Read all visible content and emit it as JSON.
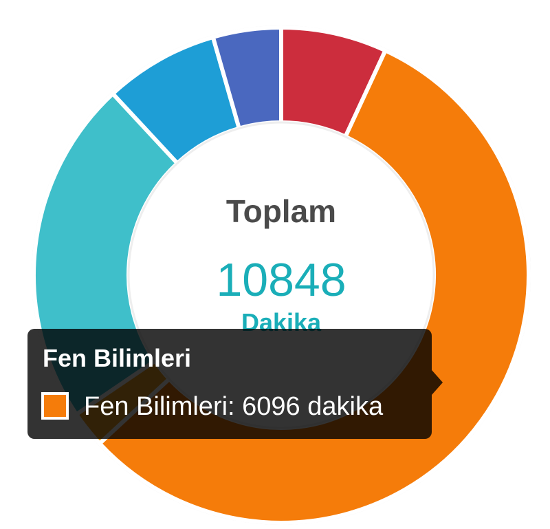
{
  "chart_data": {
    "type": "pie",
    "donut": true,
    "categories": [
      "",
      "Fen Bilimleri",
      "",
      "",
      "",
      ""
    ],
    "values": [
      750,
      6096,
      260,
      2450,
      810,
      482
    ],
    "colors": [
      "#cc2d3d",
      "#f57c0a",
      "#f5a623",
      "#3fbfca",
      "#1e9ed6",
      "#4a68bf"
    ],
    "center": {
      "title": "Toplam",
      "value": "10848",
      "unit": "Dakika"
    }
  },
  "tooltip": {
    "title": "Fen Bilimleri",
    "text": "Fen Bilimleri: 6096 dakika",
    "color": "#f57c0a"
  }
}
